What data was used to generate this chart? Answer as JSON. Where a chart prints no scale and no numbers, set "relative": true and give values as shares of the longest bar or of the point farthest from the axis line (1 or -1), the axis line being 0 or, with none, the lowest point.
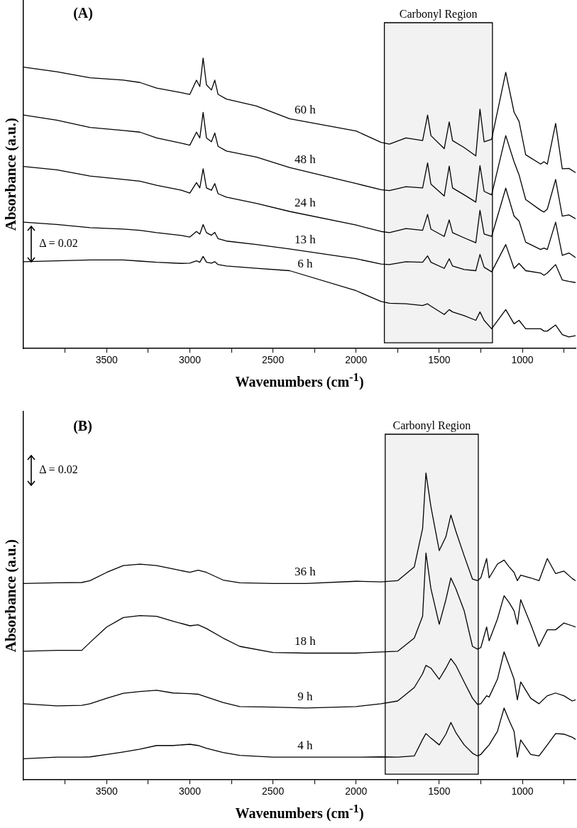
{
  "chart_data": [
    {
      "type": "line",
      "title": "(A)",
      "xlabel": "Wavenumbers (cm$^{-1}$)",
      "ylabel": "Absorbance (a.u.)",
      "relative": true,
      "legend": false,
      "grid": false,
      "tick_labels": "x",
      "marker": "none",
      "line_style": "solid",
      "xlim": [
        4000,
        680
      ],
      "xticks": [
        {
          "value": 3750,
          "label": null
        },
        3500,
        {
          "value": 3250,
          "label": null
        },
        3000,
        {
          "value": 2750,
          "label": null
        },
        2500,
        {
          "value": 2250,
          "label": null
        },
        2000,
        {
          "value": 1750,
          "label": null
        },
        1500,
        {
          "value": 1250,
          "label": null
        },
        1000,
        {
          "value": 750,
          "label": null
        }
      ],
      "x": [
        4000,
        3800,
        3600,
        3400,
        3300,
        3200,
        3050,
        3000,
        2960,
        2940,
        2920,
        2900,
        2870,
        2850,
        2830,
        2780,
        2600,
        2400,
        2000,
        1850,
        1800,
        1700,
        1600,
        1570,
        1550,
        1470,
        1440,
        1420,
        1350,
        1280,
        1255,
        1230,
        1185,
        1100,
        1050,
        1020,
        980,
        890,
        870,
        850,
        800,
        760,
        720,
        680
      ],
      "bands": [
        {
          "axis": "x",
          "from": 1830,
          "to": 1180,
          "label": "Carbonyl Region",
          "color": "#f2f2f2"
        }
      ],
      "annotations": [
        "Δ = 0.02"
      ],
      "series": [
        {
          "name": "60 h",
          "color": "#000000",
          "values": [
            0.969,
            0.953,
            0.932,
            0.924,
            0.916,
            0.897,
            0.881,
            0.875,
            0.924,
            0.902,
            1,
            0.908,
            0.89,
            0.924,
            0.875,
            0.859,
            0.835,
            0.791,
            0.749,
            0.71,
            0.704,
            0.725,
            0.716,
            0.804,
            0.733,
            0.688,
            0.78,
            0.716,
            0.692,
            0.663,
            0.824,
            0.712,
            0.72,
            0.951,
            0.814,
            0.782,
            0.667,
            0.635,
            0.643,
            0.635,
            0.775,
            0.619,
            0.62,
            0.606
          ]
        },
        {
          "name": "48 h",
          "color": "#000000",
          "values": [
            0.804,
            0.786,
            0.761,
            0.751,
            0.745,
            0.725,
            0.707,
            0.7,
            0.745,
            0.725,
            0.813,
            0.725,
            0.712,
            0.742,
            0.696,
            0.68,
            0.659,
            0.623,
            0.568,
            0.547,
            0.544,
            0.557,
            0.553,
            0.639,
            0.566,
            0.525,
            0.628,
            0.553,
            0.529,
            0.504,
            0.63,
            0.541,
            0.529,
            0.733,
            0.643,
            0.598,
            0.513,
            0.476,
            0.47,
            0.48,
            0.582,
            0.456,
            0.46,
            0.447
          ]
        },
        {
          "name": "24 h",
          "color": "#000000",
          "values": [
            0.627,
            0.615,
            0.594,
            0.582,
            0.576,
            0.562,
            0.545,
            0.535,
            0.571,
            0.553,
            0.619,
            0.553,
            0.545,
            0.568,
            0.533,
            0.521,
            0.5,
            0.472,
            0.425,
            0.403,
            0.399,
            0.413,
            0.407,
            0.462,
            0.411,
            0.386,
            0.443,
            0.399,
            0.381,
            0.364,
            0.476,
            0.394,
            0.386,
            0.552,
            0.456,
            0.439,
            0.366,
            0.341,
            0.346,
            0.341,
            0.435,
            0.321,
            0.329,
            0.313
          ]
        },
        {
          "name": "13 h",
          "color": "#000000",
          "values": [
            0.435,
            0.427,
            0.416,
            0.411,
            0.407,
            0.399,
            0.389,
            0.384,
            0.403,
            0.394,
            0.427,
            0.399,
            0.39,
            0.4,
            0.378,
            0.37,
            0.358,
            0.343,
            0.309,
            0.291,
            0.289,
            0.299,
            0.297,
            0.319,
            0.297,
            0.276,
            0.309,
            0.284,
            0.272,
            0.268,
            0.324,
            0.28,
            0.264,
            0.358,
            0.276,
            0.293,
            0.268,
            0.26,
            0.252,
            0.26,
            0.289,
            0.236,
            0.231,
            0.227
          ]
        },
        {
          "name": "6 h",
          "color": "#000000",
          "values": [
            0.299,
            0.302,
            0.305,
            0.305,
            0.301,
            0.297,
            0.293,
            0.294,
            0.302,
            0.297,
            0.317,
            0.297,
            0.294,
            0.299,
            0.289,
            0.284,
            0.276,
            0.268,
            0.199,
            0.162,
            0.156,
            0.154,
            0.148,
            0.154,
            0.146,
            0.117,
            0.134,
            0.126,
            0.113,
            0.097,
            0.126,
            0.097,
            0.068,
            0.134,
            0.085,
            0.097,
            0.068,
            0.068,
            0.06,
            0.06,
            0.081,
            0.048,
            0.04,
            0.044
          ]
        }
      ]
    },
    {
      "type": "line",
      "title": "(B)",
      "xlabel": "Wavenumbers (cm$^{-1}$)",
      "ylabel": "Absorbance (a.u.)",
      "relative": true,
      "legend": false,
      "grid": false,
      "tick_labels": "x",
      "marker": "none",
      "line_style": "solid",
      "xlim": [
        4000,
        680
      ],
      "xticks": [
        {
          "value": 3750,
          "label": null
        },
        3500,
        {
          "value": 3250,
          "label": null
        },
        3000,
        {
          "value": 2750,
          "label": null
        },
        2500,
        {
          "value": 2250,
          "label": null
        },
        2000,
        {
          "value": 1750,
          "label": null
        },
        1500,
        {
          "value": 1250,
          "label": null
        },
        1000,
        {
          "value": 750,
          "label": null
        }
      ],
      "x": [
        4000,
        3800,
        3650,
        3600,
        3500,
        3400,
        3300,
        3200,
        3100,
        3000,
        2950,
        2900,
        2800,
        2700,
        2500,
        2300,
        2000,
        1850,
        1750,
        1650,
        1600,
        1580,
        1550,
        1500,
        1460,
        1430,
        1400,
        1350,
        1300,
        1270,
        1250,
        1215,
        1200,
        1150,
        1110,
        1080,
        1050,
        1030,
        1010,
        950,
        900,
        850,
        800,
        750,
        700,
        680
      ],
      "bands": [
        {
          "axis": "x",
          "from": 1825,
          "to": 1265,
          "label": "Carbonyl Region",
          "color": "#f2f2f2"
        }
      ],
      "annotations": [
        "Δ = 0.02"
      ],
      "series": [
        {
          "name": "36 h",
          "color": "#000000",
          "values": [
            0.64,
            0.642,
            0.643,
            0.649,
            0.676,
            0.698,
            0.703,
            0.698,
            0.687,
            0.676,
            0.683,
            0.676,
            0.651,
            0.642,
            0.64,
            0.64,
            0.647,
            0.645,
            0.649,
            0.694,
            0.819,
            1,
            0.89,
            0.747,
            0.792,
            0.863,
            0.81,
            0.73,
            0.654,
            0.649,
            0.658,
            0.721,
            0.658,
            0.703,
            0.716,
            0.694,
            0.676,
            0.649,
            0.667,
            0.658,
            0.649,
            0.721,
            0.672,
            0.68,
            0.656,
            0.649
          ]
        },
        {
          "name": "18 h",
          "color": "#000000",
          "values": [
            0.419,
            0.422,
            0.422,
            0.448,
            0.498,
            0.529,
            0.535,
            0.533,
            0.517,
            0.502,
            0.505,
            0.493,
            0.462,
            0.435,
            0.415,
            0.413,
            0.413,
            0.417,
            0.419,
            0.462,
            0.533,
            0.739,
            0.623,
            0.507,
            0.587,
            0.658,
            0.623,
            0.551,
            0.435,
            0.426,
            0.431,
            0.498,
            0.453,
            0.524,
            0.6,
            0.578,
            0.551,
            0.507,
            0.587,
            0.507,
            0.435,
            0.489,
            0.489,
            0.511,
            0.502,
            0.498
          ]
        },
        {
          "name": "9 h",
          "color": "#000000",
          "values": [
            0.248,
            0.241,
            0.243,
            0.248,
            0.266,
            0.282,
            0.288,
            0.292,
            0.283,
            0.281,
            0.279,
            0.27,
            0.252,
            0.239,
            0.237,
            0.234,
            0.239,
            0.248,
            0.257,
            0.301,
            0.346,
            0.373,
            0.364,
            0.328,
            0.364,
            0.395,
            0.373,
            0.319,
            0.266,
            0.246,
            0.248,
            0.274,
            0.27,
            0.328,
            0.417,
            0.373,
            0.328,
            0.261,
            0.319,
            0.266,
            0.248,
            0.274,
            0.283,
            0.274,
            0.257,
            0.261
          ]
        },
        {
          "name": "4 h",
          "color": "#000000",
          "values": [
            0.069,
            0.074,
            0.074,
            0.075,
            0.083,
            0.091,
            0.1,
            0.112,
            0.112,
            0.116,
            0.112,
            0.103,
            0.089,
            0.08,
            0.074,
            0.074,
            0.074,
            0.075,
            0.074,
            0.078,
            0.132,
            0.151,
            0.136,
            0.114,
            0.149,
            0.187,
            0.154,
            0.114,
            0.087,
            0.078,
            0.083,
            0.105,
            0.114,
            0.158,
            0.234,
            0.194,
            0.158,
            0.074,
            0.13,
            0.083,
            0.078,
            0.114,
            0.151,
            0.149,
            0.139,
            0.132
          ]
        }
      ]
    }
  ]
}
